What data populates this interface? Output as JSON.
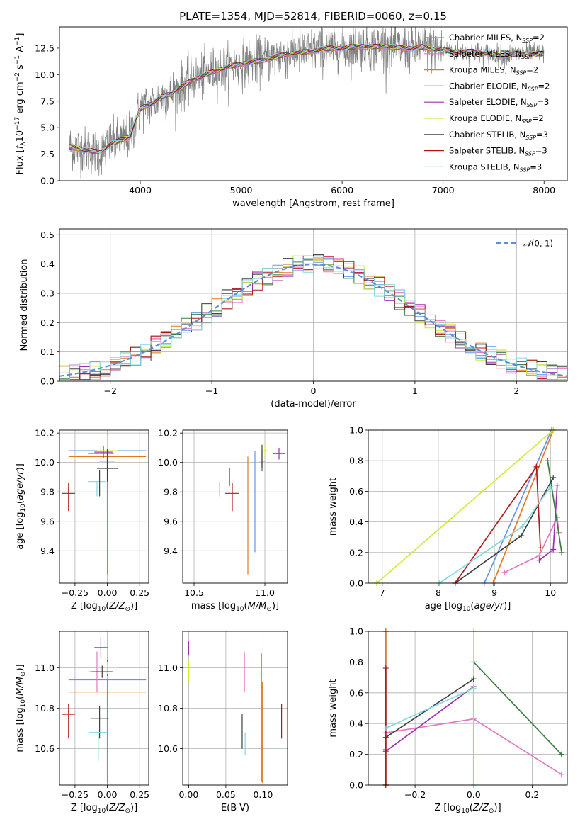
{
  "title": "PLATE=1354, MJD=52814, FIBERID=0060, z=0.15",
  "colors": {
    "chabrier_miles": "#6495ed",
    "salpeter_miles": "#e377c2",
    "kroupa_miles": "#e07a1f",
    "chabrier_elodie": "#3a7d44",
    "salpeter_elodie": "#9b30ae",
    "kroupa_elodie": "#d4e83a",
    "chabrier_stelib": "#404040",
    "salpeter_stelib": "#b01818",
    "kroupa_stelib": "#80d8e0",
    "observed_spectrum": "#808080",
    "normal_curve": "#5b8fd6"
  },
  "legend": [
    {
      "label": "Chabrier MILES, N",
      "sub": "SSP",
      "tail": "=2",
      "color": "#6495ed"
    },
    {
      "label": "Salpeter MILES, N",
      "sub": "SSP",
      "tail": "=4",
      "color": "#e377c2"
    },
    {
      "label": "Kroupa MILES, N",
      "sub": "SSP",
      "tail": "=2",
      "color": "#e07a1f"
    },
    {
      "label": "Chabrier ELODIE, N",
      "sub": "SSP",
      "tail": "=2",
      "color": "#3a7d44"
    },
    {
      "label": "Salpeter ELODIE, N",
      "sub": "SSP",
      "tail": "=3",
      "color": "#9b30ae"
    },
    {
      "label": "Kroupa ELODIE, N",
      "sub": "SSP",
      "tail": "=2",
      "color": "#d4e83a"
    },
    {
      "label": "Chabrier STELIB, N",
      "sub": "SSP",
      "tail": "=3",
      "color": "#404040"
    },
    {
      "label": "Salpeter STELIB, N",
      "sub": "SSP",
      "tail": "=3",
      "color": "#b01818"
    },
    {
      "label": "Kroupa STELIB, N",
      "sub": "SSP",
      "tail": "=3",
      "color": "#80d8e0"
    }
  ],
  "chart_data": [
    {
      "id": "spectrum",
      "type": "line",
      "title": "PLATE=1354, MJD=52814, FIBERID=0060, z=0.15",
      "xlabel": "wavelength [Angstrom, rest frame]",
      "ylabel": "Flux [f_λ 10^-17 erg cm^-2 s^-1 A^-1]",
      "xlim": [
        3200,
        8230
      ],
      "ylim": [
        0,
        14.5
      ],
      "xticks": [
        4000,
        5000,
        6000,
        7000,
        8000
      ],
      "yticks": [
        0.0,
        2.5,
        5.0,
        7.5,
        10.0,
        12.5
      ],
      "model_envelope": {
        "x": [
          3300,
          3400,
          3500,
          3600,
          3700,
          3800,
          3900,
          4000,
          4100,
          4200,
          4300,
          4400,
          4500,
          4600,
          4700,
          4800,
          4900,
          5000,
          5100,
          5200,
          5300,
          5400,
          5500,
          5600,
          5700,
          5800,
          5900,
          6000,
          6100,
          6200,
          6300,
          6400,
          6500,
          6600,
          6700,
          6800,
          6900,
          7000,
          7100,
          7200,
          7300,
          7400,
          7500,
          7600,
          7700,
          7800,
          7900,
          8000
        ],
        "y": [
          3.2,
          3.0,
          2.8,
          2.7,
          3.4,
          3.8,
          4.2,
          6.8,
          7.2,
          7.8,
          8.2,
          8.8,
          9.4,
          9.8,
          10.2,
          10.5,
          10.8,
          11.0,
          11.2,
          11.3,
          11.6,
          11.8,
          12.0,
          12.1,
          12.2,
          12.4,
          12.5,
          12.5,
          12.6,
          12.7,
          12.6,
          12.7,
          12.6,
          12.5,
          12.5,
          12.6,
          12.4,
          12.3,
          12.2,
          12.1,
          12.2,
          12.0,
          11.9,
          11.8,
          11.9,
          12.0,
          11.9,
          12.0
        ]
      },
      "series": [
        {
          "name": "Chabrier MILES, N_SSP=2",
          "color": "#6495ed"
        },
        {
          "name": "Salpeter MILES, N_SSP=4",
          "color": "#e377c2"
        },
        {
          "name": "Kroupa MILES, N_SSP=2",
          "color": "#e07a1f"
        },
        {
          "name": "Chabrier ELODIE, N_SSP=2",
          "color": "#3a7d44"
        },
        {
          "name": "Salpeter ELODIE, N_SSP=3",
          "color": "#9b30ae"
        },
        {
          "name": "Kroupa ELODIE, N_SSP=2",
          "color": "#d4e83a"
        },
        {
          "name": "Chabrier STELIB, N_SSP=3",
          "color": "#404040"
        },
        {
          "name": "Salpeter STELIB, N_SSP=3",
          "color": "#b01818"
        },
        {
          "name": "Kroupa STELIB, N_SSP=3",
          "color": "#80d8e0"
        }
      ],
      "legend_position": "right"
    },
    {
      "id": "residuals",
      "type": "bar",
      "xlabel": "(data-model)/error",
      "ylabel": "Normed distribution",
      "xlim": [
        -2.5,
        2.5
      ],
      "ylim": [
        0,
        0.52
      ],
      "xticks": [
        -2,
        -1,
        0,
        1,
        2
      ],
      "yticks": [
        0.0,
        0.1,
        0.2,
        0.3,
        0.4,
        0.5
      ],
      "grid": true,
      "reference_curve": {
        "name": "N(0,1)",
        "style": "dashed",
        "color": "#5b8fd6"
      },
      "legend_position": "top-right"
    },
    {
      "id": "age_vs_Z",
      "type": "scatter",
      "xlabel": "Z [log10(Z/Z_sun)]",
      "ylabel": "age [log10(age/yr)]",
      "xlim": [
        -0.37,
        0.32
      ],
      "ylim": [
        9.18,
        10.22
      ],
      "xticks": [
        -0.25,
        0.0,
        0.25
      ],
      "yticks": [
        9.4,
        9.6,
        9.8,
        10.0,
        10.2
      ],
      "points": [
        {
          "color": "#6495ed",
          "x": 0.0,
          "xerr": 0.3,
          "y": 10.08,
          "yerr": [
            0.4,
            0.0
          ]
        },
        {
          "color": "#e07a1f",
          "x": 0.0,
          "xerr": 0.3,
          "y": 10.04,
          "yerr": [
            0.8,
            0.0
          ]
        },
        {
          "color": "#e377c2",
          "x": -0.05,
          "xerr": 0.1,
          "y": 10.06,
          "yerr": [
            0.05,
            0.05
          ]
        },
        {
          "color": "#3a7d44",
          "x": 0.0,
          "xerr": 0.06,
          "y": 10.01,
          "yerr": [
            0.06,
            0.06
          ]
        },
        {
          "color": "#9b30ae",
          "x": -0.03,
          "xerr": 0.07,
          "y": 10.07,
          "yerr": [
            0.04,
            0.04
          ]
        },
        {
          "color": "#d4e83a",
          "x": 0.0,
          "xerr": 0.08,
          "y": 10.08,
          "yerr": [
            0.04,
            0.1
          ]
        },
        {
          "color": "#404040",
          "x": 0.0,
          "xerr": 0.08,
          "y": 9.96,
          "yerr": [
            0.09,
            0.13
          ]
        },
        {
          "color": "#b01818",
          "x": -0.3,
          "xerr": 0.05,
          "y": 9.79,
          "yerr": [
            0.12,
            0.07
          ]
        },
        {
          "color": "#80d8e0",
          "x": -0.08,
          "xerr": 0.07,
          "y": 9.87,
          "yerr": [
            0.1,
            0.0
          ]
        },
        {
          "color": "#404040",
          "x": -0.06,
          "xerr": 0.0,
          "y": 9.87,
          "yerr": [
            0.1,
            0.08
          ]
        }
      ]
    },
    {
      "id": "age_vs_mass",
      "type": "scatter",
      "xlabel": "mass [log10(M/M_sun)]",
      "ylabel": "",
      "xlim": [
        10.42,
        11.16
      ],
      "ylim": [
        9.18,
        10.22
      ],
      "xticks": [
        10.5,
        11.0
      ],
      "yticks": [
        9.4,
        9.6,
        9.8,
        10.0,
        10.2
      ],
      "points": [
        {
          "color": "#6495ed",
          "x": 10.93,
          "xerr": 0.0,
          "y": 10.08,
          "yerr": [
            0.69,
            0.0
          ]
        },
        {
          "color": "#e07a1f",
          "x": 10.88,
          "xerr": 0.0,
          "y": 10.04,
          "yerr": [
            0.8,
            0.0
          ]
        },
        {
          "color": "#3a7d44",
          "x": 10.98,
          "xerr": 0.02,
          "y": 10.01,
          "yerr": [
            0.07,
            0.07
          ]
        },
        {
          "color": "#9b30ae",
          "x": 11.1,
          "xerr": 0.04,
          "y": 10.06,
          "yerr": [
            0.04,
            0.04
          ]
        },
        {
          "color": "#d4e83a",
          "x": 11.0,
          "xerr": 0.02,
          "y": 10.08,
          "yerr": [
            0.04,
            0.04
          ]
        },
        {
          "color": "#404040",
          "x": 10.75,
          "xerr": 0.0,
          "y": 9.96,
          "yerr": [
            0.12,
            0.0
          ]
        },
        {
          "color": "#404040",
          "x": 10.98,
          "xerr": 0.0,
          "y": 10.04,
          "yerr": [
            0.08,
            0.08
          ]
        },
        {
          "color": "#b01818",
          "x": 10.77,
          "xerr": 0.05,
          "y": 9.79,
          "yerr": [
            0.12,
            0.07
          ]
        },
        {
          "color": "#80d8e0",
          "x": 10.68,
          "xerr": 0.0,
          "y": 9.87,
          "yerr": [
            0.1,
            0.0
          ]
        }
      ]
    },
    {
      "id": "mass_weight_vs_age",
      "type": "line",
      "xlabel": "age [log10(age/yr)]",
      "ylabel": "mass weight",
      "xlim": [
        6.75,
        10.3
      ],
      "ylim": [
        0,
        1.0
      ],
      "xticks": [
        7,
        8,
        9,
        10
      ],
      "yticks": [
        0.0,
        0.2,
        0.4,
        0.6,
        0.8,
        1.0
      ],
      "grid": true,
      "series": [
        {
          "name": "Chabrier MILES, N_SSP=2",
          "color": "#6495ed",
          "x": [
            8.82,
            10.02
          ],
          "y": [
            0.0,
            1.0
          ]
        },
        {
          "name": "Salpeter MILES, N_SSP=4",
          "color": "#e377c2",
          "x": [
            9.18,
            9.8,
            10.12,
            10.15
          ],
          "y": [
            0.07,
            0.18,
            0.43,
            0.33
          ]
        },
        {
          "name": "Kroupa MILES, N_SSP=2",
          "color": "#e07a1f",
          "x": [
            8.98,
            10.05
          ],
          "y": [
            0.0,
            1.0
          ]
        },
        {
          "name": "Chabrier ELODIE, N_SSP=2",
          "color": "#3a7d44",
          "x": [
            9.95,
            10.2
          ],
          "y": [
            0.8,
            0.2
          ]
        },
        {
          "name": "Salpeter ELODIE, N_SSP=3",
          "color": "#9b30ae",
          "x": [
            9.8,
            10.05,
            10.12
          ],
          "y": [
            0.15,
            0.22,
            0.64
          ]
        },
        {
          "name": "Kroupa ELODIE, N_SSP=2",
          "color": "#d4e83a",
          "x": [
            6.9,
            10.05
          ],
          "y": [
            0.0,
            1.0
          ]
        },
        {
          "name": "Chabrier STELIB, N_SSP=3",
          "color": "#404040",
          "x": [
            8.3,
            9.48,
            10.05
          ],
          "y": [
            0.0,
            0.31,
            0.69
          ]
        },
        {
          "name": "Salpeter STELIB, N_SSP=3",
          "color": "#b01818",
          "x": [
            8.3,
            9.75,
            9.82
          ],
          "y": [
            0.0,
            0.76,
            0.23
          ]
        },
        {
          "name": "Kroupa STELIB, N_SSP=3",
          "color": "#80d8e0",
          "x": [
            8.02,
            9.5,
            10.0
          ],
          "y": [
            0.0,
            0.37,
            0.63
          ]
        }
      ]
    },
    {
      "id": "mass_vs_Z",
      "type": "scatter",
      "xlabel": "Z [log10(Z/Z_sun)]",
      "ylabel": "mass [log10(M/M_sun)]",
      "xlim": [
        -0.37,
        0.32
      ],
      "ylim": [
        10.42,
        11.18
      ],
      "xticks": [
        -0.25,
        0.0,
        0.25
      ],
      "yticks": [
        10.6,
        10.8,
        11.0
      ],
      "points": [
        {
          "color": "#6495ed",
          "x": 0.0,
          "xerr": 0.3,
          "y": 10.94,
          "yerr": [
            0.5,
            0.0
          ]
        },
        {
          "color": "#e07a1f",
          "x": 0.0,
          "xerr": 0.3,
          "y": 10.88,
          "yerr": [
            0.45,
            0.0
          ]
        },
        {
          "color": "#e377c2",
          "x": -0.08,
          "xerr": 0.06,
          "y": 10.98,
          "yerr": [
            0.1,
            0.1
          ]
        },
        {
          "color": "#3a7d44",
          "x": 0.0,
          "xerr": 0.08,
          "y": 11.0,
          "yerr": [
            0.04,
            0.04
          ]
        },
        {
          "color": "#9b30ae",
          "x": -0.05,
          "xerr": 0.05,
          "y": 11.1,
          "yerr": [
            0.05,
            0.05
          ]
        },
        {
          "color": "#d4e83a",
          "x": 0.0,
          "xerr": 0.08,
          "y": 11.0,
          "yerr": [
            0.03,
            0.03
          ]
        },
        {
          "color": "#404040",
          "x": -0.04,
          "xerr": 0.08,
          "y": 10.98,
          "yerr": [
            0.03,
            0.03
          ]
        },
        {
          "color": "#404040",
          "x": -0.06,
          "xerr": 0.07,
          "y": 10.75,
          "yerr": [
            0.1,
            0.06
          ]
        },
        {
          "color": "#b01818",
          "x": -0.3,
          "xerr": 0.05,
          "y": 10.77,
          "yerr": [
            0.12,
            0.05
          ]
        },
        {
          "color": "#80d8e0",
          "x": -0.07,
          "xerr": 0.07,
          "y": 10.68,
          "yerr": [
            0.14,
            0.0
          ]
        }
      ]
    },
    {
      "id": "mass_vs_ebv",
      "type": "scatter",
      "xlabel": "E(B-V)",
      "ylabel": "",
      "xlim": [
        -0.008,
        0.133
      ],
      "ylim": [
        10.42,
        11.18
      ],
      "xticks": [
        0.0,
        0.05,
        0.1
      ],
      "yticks": [
        10.6,
        10.8,
        11.0
      ],
      "points": [
        {
          "color": "#9b30ae",
          "x": 0.0,
          "xerr": 0.0,
          "y": 11.13,
          "yerr": [
            0.07,
            0.0
          ]
        },
        {
          "color": "#d4e83a",
          "x": 0.0,
          "xerr": 0.0,
          "y": 11.0,
          "yerr": [
            0.07,
            0.04
          ]
        },
        {
          "color": "#e377c2",
          "x": 0.075,
          "xerr": 0.0,
          "y": 10.98,
          "yerr": [
            0.1,
            0.1
          ]
        },
        {
          "color": "#404040",
          "x": 0.072,
          "xerr": 0.0,
          "y": 10.67,
          "yerr": [
            0.07,
            0.1
          ]
        },
        {
          "color": "#80d8e0",
          "x": 0.076,
          "xerr": 0.0,
          "y": 10.62,
          "yerr": [
            0.05,
            0.06
          ]
        },
        {
          "color": "#6495ed",
          "x": 0.098,
          "xerr": 0.0,
          "y": 10.94,
          "yerr": [
            0.5,
            0.13
          ]
        },
        {
          "color": "#e07a1f",
          "x": 0.099,
          "xerr": 0.0,
          "y": 10.88,
          "yerr": [
            0.45,
            0.05
          ]
        },
        {
          "color": "#b01818",
          "x": 0.125,
          "xerr": 0.0,
          "y": 10.73,
          "yerr": [
            0.08,
            0.09
          ]
        }
      ]
    },
    {
      "id": "mass_weight_vs_Z",
      "type": "line",
      "xlabel": "Z [log10(Z/Z_sun)]",
      "ylabel": "mass weight",
      "xlim": [
        -0.36,
        0.32
      ],
      "ylim": [
        0,
        1.0
      ],
      "xticks": [
        -0.2,
        0.0,
        0.2
      ],
      "yticks": [
        0.0,
        0.2,
        0.4,
        0.6,
        0.8,
        1.0
      ],
      "grid": true,
      "series": [
        {
          "name": "Chabrier MILES, N_SSP=2",
          "color": "#6495ed",
          "x": [
            -0.3,
            -0.3
          ],
          "y": [
            0.0,
            1.0
          ]
        },
        {
          "name": "Salpeter MILES, N_SSP=4",
          "color": "#e377c2",
          "x": [
            -0.3,
            0.0,
            0.3
          ],
          "y": [
            0.34,
            0.43,
            0.07
          ]
        },
        {
          "name": "Kroupa MILES, N_SSP=2",
          "color": "#e07a1f",
          "x": [
            -0.3,
            -0.3
          ],
          "y": [
            0.0,
            1.0
          ]
        },
        {
          "name": "Chabrier ELODIE, N_SSP=2",
          "color": "#3a7d44",
          "x": [
            0.0,
            0.3
          ],
          "y": [
            0.8,
            0.2
          ]
        },
        {
          "name": "Salpeter ELODIE, N_SSP=3",
          "color": "#9b30ae",
          "x": [
            -0.3,
            0.0
          ],
          "y": [
            0.22,
            0.64
          ]
        },
        {
          "name": "Kroupa ELODIE, N_SSP=2",
          "color": "#d4e83a",
          "x": [
            0.0,
            0.0
          ],
          "y": [
            0.0,
            1.0
          ]
        },
        {
          "name": "Chabrier STELIB, N_SSP=3",
          "color": "#404040",
          "x": [
            -0.3,
            0.0
          ],
          "y": [
            0.31,
            0.69
          ]
        },
        {
          "name": "Salpeter STELIB, N_SSP=3",
          "color": "#b01818",
          "x": [
            -0.3,
            -0.3,
            -0.3
          ],
          "y": [
            0.0,
            0.23,
            0.76
          ]
        },
        {
          "name": "Kroupa STELIB, N_SSP=3",
          "color": "#80d8e0",
          "x": [
            -0.3,
            0.0,
            0.0
          ],
          "y": [
            0.37,
            0.63,
            0.0
          ]
        }
      ]
    }
  ]
}
